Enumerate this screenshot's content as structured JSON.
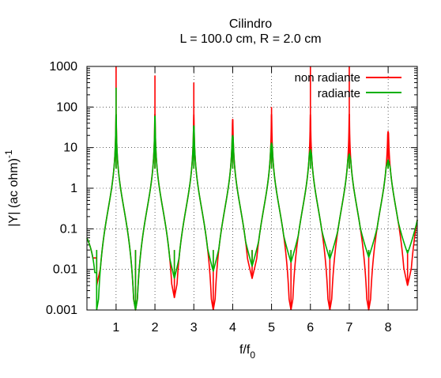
{
  "chart_data": {
    "type": "line",
    "title": "Cilindro",
    "subtitle": "L = 100.0 cm, R = 2.0 cm",
    "xlabel_main": "f/f",
    "xlabel_sub": "0",
    "ylabel_main": "|Y| (ac ohm)",
    "ylabel_sup": "-1",
    "xlim": [
      0.25,
      8.75
    ],
    "ylim": [
      0.001,
      1000
    ],
    "y_scale": "log",
    "grid": true,
    "legend_position": "top-right",
    "x_ticks": [
      "1",
      "2",
      "3",
      "4",
      "5",
      "6",
      "7",
      "8"
    ],
    "y_ticks": [
      "0.001",
      "0.01",
      "0.1",
      "1",
      "10",
      "100",
      "1000"
    ],
    "series": [
      {
        "name": "non radiante",
        "color": "#ff0000",
        "resonance_peaks": [
          {
            "x": 1,
            "y": 1000
          },
          {
            "x": 2,
            "y": 600
          },
          {
            "x": 3,
            "y": 400
          },
          {
            "x": 4,
            "y": 50
          },
          {
            "x": 5,
            "y": 100
          },
          {
            "x": 6,
            "y": 1000
          },
          {
            "x": 7,
            "y": 1000
          },
          {
            "x": 8,
            "y": 25
          }
        ],
        "antiresonance_dips": [
          {
            "x": 0.5,
            "y": 0.004
          },
          {
            "x": 1.5,
            "y": 0.001
          },
          {
            "x": 2.5,
            "y": 0.002
          },
          {
            "x": 3.5,
            "y": 0.001
          },
          {
            "x": 4.5,
            "y": 0.006
          },
          {
            "x": 5.5,
            "y": 0.001
          },
          {
            "x": 6.5,
            "y": 0.001
          },
          {
            "x": 7.5,
            "y": 0.001
          },
          {
            "x": 8.5,
            "y": 0.004
          }
        ]
      },
      {
        "name": "radiante",
        "color": "#00b000",
        "resonance_peaks": [
          {
            "x": 1,
            "y": 300
          },
          {
            "x": 2,
            "y": 60
          },
          {
            "x": 3,
            "y": 35
          },
          {
            "x": 4,
            "y": 20
          },
          {
            "x": 5,
            "y": 13
          },
          {
            "x": 6,
            "y": 9
          },
          {
            "x": 7,
            "y": 7
          },
          {
            "x": 8,
            "y": 5
          }
        ],
        "antiresonance_dips": [
          {
            "x": 0.5,
            "y": 0.001
          },
          {
            "x": 1.5,
            "y": 0.001
          },
          {
            "x": 2.5,
            "y": 0.006
          },
          {
            "x": 3.5,
            "y": 0.009
          },
          {
            "x": 4.5,
            "y": 0.012
          },
          {
            "x": 5.5,
            "y": 0.015
          },
          {
            "x": 6.5,
            "y": 0.018
          },
          {
            "x": 7.5,
            "y": 0.02
          },
          {
            "x": 8.5,
            "y": 0.025
          }
        ]
      }
    ]
  }
}
